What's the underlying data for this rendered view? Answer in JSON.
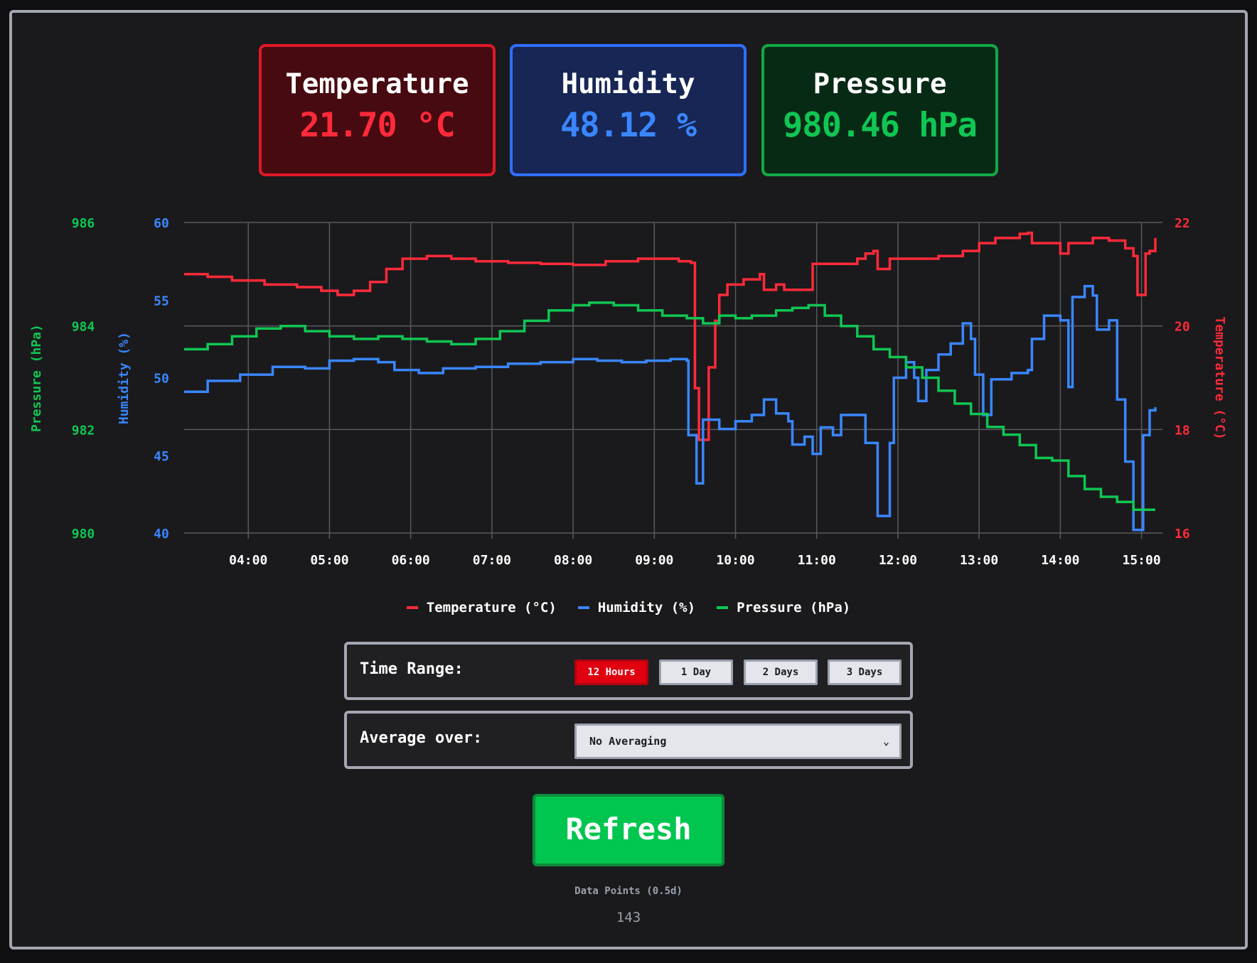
{
  "cards": {
    "temperature": {
      "label": "Temperature",
      "value": "21.70 °C"
    },
    "humidity": {
      "label": "Humidity",
      "value": "48.12 %"
    },
    "pressure": {
      "label": "Pressure",
      "value": "980.46 hPa"
    }
  },
  "colors": {
    "temperature": "#ff2a3a",
    "humidity": "#3a86ff",
    "pressure": "#10c653",
    "grid": "#5a5a5e"
  },
  "legend": {
    "temperature": "Temperature (°C)",
    "humidity": "Humidity (%)",
    "pressure": "Pressure (hPa)"
  },
  "controls": {
    "time_range_label": "Time Range:",
    "ranges": [
      "12 Hours",
      "1 Day",
      "2 Days",
      "3 Days"
    ],
    "active_range": "12 Hours",
    "average_label": "Average over:",
    "average_selected": "No Averaging",
    "refresh_label": "Refresh",
    "data_points_label": "Data Points (0.5d)",
    "data_points_value": "143"
  },
  "chart_data": {
    "type": "line",
    "x_ticks": [
      "04:00",
      "05:00",
      "06:00",
      "07:00",
      "08:00",
      "09:00",
      "10:00",
      "11:00",
      "12:00",
      "13:00",
      "14:00",
      "15:00"
    ],
    "x_range_hours": [
      3.21,
      15.17
    ],
    "axes": {
      "pressure": {
        "label": "Pressure (hPa)",
        "range": [
          980,
          986
        ],
        "ticks": [
          980,
          982,
          984,
          986
        ]
      },
      "humidity": {
        "label": "Humidity (%)",
        "range": [
          40,
          60
        ],
        "ticks": [
          40,
          45,
          50,
          55,
          60
        ]
      },
      "temperature": {
        "label": "Temperature (°C)",
        "range": [
          16,
          22
        ],
        "ticks": [
          16,
          18,
          20,
          22
        ]
      }
    },
    "grid": true,
    "series": [
      {
        "name": "Temperature (°C)",
        "axis": "temperature",
        "points": [
          [
            3.21,
            21.0
          ],
          [
            3.5,
            20.95
          ],
          [
            3.8,
            20.88
          ],
          [
            4.2,
            20.8
          ],
          [
            4.6,
            20.75
          ],
          [
            4.9,
            20.68
          ],
          [
            5.1,
            20.6
          ],
          [
            5.3,
            20.68
          ],
          [
            5.5,
            20.85
          ],
          [
            5.7,
            21.1
          ],
          [
            5.9,
            21.3
          ],
          [
            6.2,
            21.35
          ],
          [
            6.5,
            21.3
          ],
          [
            6.8,
            21.25
          ],
          [
            7.2,
            21.22
          ],
          [
            7.6,
            21.2
          ],
          [
            8.0,
            21.18
          ],
          [
            8.4,
            21.25
          ],
          [
            8.8,
            21.3
          ],
          [
            9.0,
            21.3
          ],
          [
            9.3,
            21.25
          ],
          [
            9.45,
            21.22
          ],
          [
            9.5,
            18.8
          ],
          [
            9.55,
            17.8
          ],
          [
            9.6,
            17.8
          ],
          [
            9.67,
            19.2
          ],
          [
            9.75,
            20.1
          ],
          [
            9.8,
            20.6
          ],
          [
            9.9,
            20.8
          ],
          [
            10.1,
            20.9
          ],
          [
            10.3,
            21.0
          ],
          [
            10.35,
            20.7
          ],
          [
            10.5,
            20.8
          ],
          [
            10.6,
            20.7
          ],
          [
            10.8,
            20.7
          ],
          [
            10.95,
            21.2
          ],
          [
            11.2,
            21.2
          ],
          [
            11.5,
            21.3
          ],
          [
            11.6,
            21.4
          ],
          [
            11.7,
            21.45
          ],
          [
            11.75,
            21.1
          ],
          [
            11.9,
            21.3
          ],
          [
            12.2,
            21.3
          ],
          [
            12.5,
            21.35
          ],
          [
            12.8,
            21.45
          ],
          [
            13.0,
            21.6
          ],
          [
            13.2,
            21.7
          ],
          [
            13.5,
            21.78
          ],
          [
            13.6,
            21.8
          ],
          [
            13.65,
            21.6
          ],
          [
            13.9,
            21.6
          ],
          [
            14.0,
            21.4
          ],
          [
            14.1,
            21.6
          ],
          [
            14.4,
            21.7
          ],
          [
            14.6,
            21.65
          ],
          [
            14.8,
            21.5
          ],
          [
            14.9,
            21.35
          ],
          [
            14.95,
            20.6
          ],
          [
            15.0,
            20.6
          ],
          [
            15.05,
            21.4
          ],
          [
            15.1,
            21.45
          ],
          [
            15.17,
            21.7
          ]
        ]
      },
      {
        "name": "Humidity (%)",
        "axis": "humidity",
        "points": [
          [
            3.21,
            49.1
          ],
          [
            3.5,
            49.8
          ],
          [
            3.9,
            50.2
          ],
          [
            4.3,
            50.7
          ],
          [
            4.7,
            50.6
          ],
          [
            5.0,
            51.1
          ],
          [
            5.3,
            51.2
          ],
          [
            5.6,
            51.0
          ],
          [
            5.8,
            50.5
          ],
          [
            6.1,
            50.3
          ],
          [
            6.4,
            50.6
          ],
          [
            6.8,
            50.7
          ],
          [
            7.2,
            50.9
          ],
          [
            7.6,
            51.0
          ],
          [
            8.0,
            51.2
          ],
          [
            8.3,
            51.1
          ],
          [
            8.6,
            51.0
          ],
          [
            8.9,
            51.1
          ],
          [
            9.2,
            51.2
          ],
          [
            9.4,
            51.1
          ],
          [
            9.42,
            46.3
          ],
          [
            9.5,
            46.3
          ],
          [
            9.52,
            43.2
          ],
          [
            9.58,
            43.2
          ],
          [
            9.6,
            47.3
          ],
          [
            9.8,
            46.7
          ],
          [
            10.0,
            47.2
          ],
          [
            10.2,
            47.6
          ],
          [
            10.35,
            48.6
          ],
          [
            10.5,
            47.7
          ],
          [
            10.65,
            47.2
          ],
          [
            10.7,
            45.7
          ],
          [
            10.85,
            46.2
          ],
          [
            10.95,
            45.1
          ],
          [
            11.05,
            46.8
          ],
          [
            11.2,
            46.3
          ],
          [
            11.3,
            47.6
          ],
          [
            11.5,
            47.6
          ],
          [
            11.6,
            45.8
          ],
          [
            11.7,
            45.8
          ],
          [
            11.75,
            41.1
          ],
          [
            11.85,
            41.1
          ],
          [
            11.9,
            45.8
          ],
          [
            11.95,
            50.0
          ],
          [
            12.1,
            51.0
          ],
          [
            12.2,
            50.0
          ],
          [
            12.25,
            48.5
          ],
          [
            12.35,
            50.5
          ],
          [
            12.5,
            51.5
          ],
          [
            12.65,
            52.2
          ],
          [
            12.8,
            53.5
          ],
          [
            12.9,
            52.5
          ],
          [
            12.95,
            50.2
          ],
          [
            13.05,
            47.6
          ],
          [
            13.15,
            49.9
          ],
          [
            13.4,
            50.3
          ],
          [
            13.6,
            50.5
          ],
          [
            13.65,
            52.5
          ],
          [
            13.8,
            54.0
          ],
          [
            14.0,
            53.7
          ],
          [
            14.1,
            49.4
          ],
          [
            14.15,
            55.2
          ],
          [
            14.3,
            55.9
          ],
          [
            14.4,
            55.3
          ],
          [
            14.45,
            53.1
          ],
          [
            14.6,
            53.7
          ],
          [
            14.7,
            48.6
          ],
          [
            14.8,
            44.6
          ],
          [
            14.9,
            40.2
          ],
          [
            15.0,
            40.2
          ],
          [
            15.02,
            46.3
          ],
          [
            15.1,
            47.9
          ],
          [
            15.17,
            48.1
          ]
        ]
      },
      {
        "name": "Pressure (hPa)",
        "axis": "pressure",
        "points": [
          [
            3.21,
            983.55
          ],
          [
            3.5,
            983.65
          ],
          [
            3.8,
            983.8
          ],
          [
            4.1,
            983.95
          ],
          [
            4.4,
            984.0
          ],
          [
            4.7,
            983.9
          ],
          [
            5.0,
            983.8
          ],
          [
            5.3,
            983.75
          ],
          [
            5.6,
            983.8
          ],
          [
            5.9,
            983.75
          ],
          [
            6.2,
            983.7
          ],
          [
            6.5,
            983.65
          ],
          [
            6.8,
            983.75
          ],
          [
            7.1,
            983.9
          ],
          [
            7.4,
            984.1
          ],
          [
            7.7,
            984.3
          ],
          [
            8.0,
            984.4
          ],
          [
            8.2,
            984.45
          ],
          [
            8.5,
            984.4
          ],
          [
            8.8,
            984.3
          ],
          [
            9.1,
            984.2
          ],
          [
            9.4,
            984.15
          ],
          [
            9.6,
            984.05
          ],
          [
            9.8,
            984.2
          ],
          [
            10.0,
            984.15
          ],
          [
            10.2,
            984.2
          ],
          [
            10.5,
            984.3
          ],
          [
            10.7,
            984.35
          ],
          [
            10.9,
            984.4
          ],
          [
            11.1,
            984.2
          ],
          [
            11.3,
            984.0
          ],
          [
            11.5,
            983.8
          ],
          [
            11.7,
            983.55
          ],
          [
            11.9,
            983.4
          ],
          [
            12.1,
            983.2
          ],
          [
            12.3,
            983.0
          ],
          [
            12.5,
            982.75
          ],
          [
            12.7,
            982.5
          ],
          [
            12.9,
            982.3
          ],
          [
            13.1,
            982.05
          ],
          [
            13.3,
            981.9
          ],
          [
            13.5,
            981.7
          ],
          [
            13.7,
            981.45
          ],
          [
            13.9,
            981.4
          ],
          [
            14.1,
            981.1
          ],
          [
            14.3,
            980.85
          ],
          [
            14.5,
            980.7
          ],
          [
            14.7,
            980.6
          ],
          [
            14.9,
            980.45
          ],
          [
            15.0,
            980.45
          ],
          [
            15.17,
            980.45
          ]
        ]
      }
    ]
  }
}
